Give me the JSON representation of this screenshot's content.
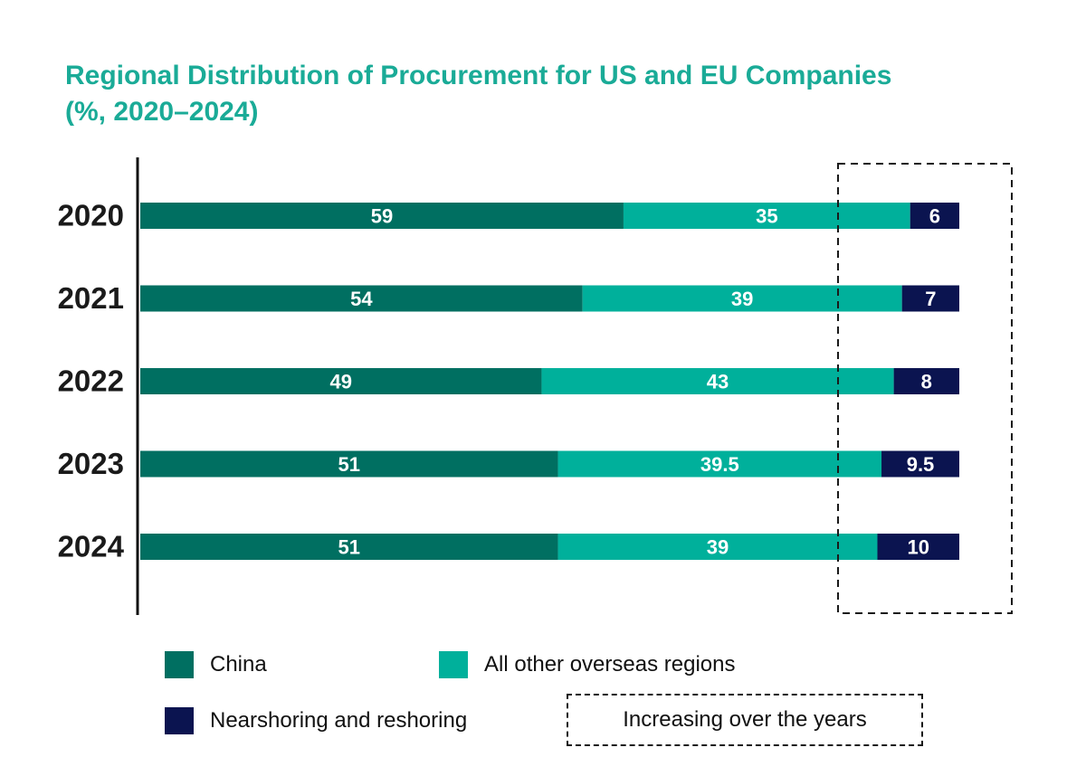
{
  "chart_data": {
    "type": "bar",
    "orientation": "horizontal",
    "stacked": true,
    "title": "Regional Distribution of Procurement for US and EU Companies",
    "subtitle": "(%, 2020–2024)",
    "categories": [
      "2020",
      "2021",
      "2022",
      "2023",
      "2024"
    ],
    "series": [
      {
        "name": "China",
        "color": "#006f61",
        "values": [
          59,
          54,
          49,
          51,
          51
        ]
      },
      {
        "name": "All other overseas regions",
        "color": "#00b09b",
        "values": [
          35,
          39,
          43,
          39.5,
          39
        ]
      },
      {
        "name": "Nearshoring and reshoring",
        "color": "#0b1450",
        "values": [
          6,
          7,
          8,
          9.5,
          10
        ]
      }
    ],
    "value_labels": [
      [
        "59",
        "54",
        "49",
        "51",
        "51"
      ],
      [
        "35",
        "39",
        "43",
        "39.5",
        "39"
      ],
      [
        "6",
        "7",
        "8",
        "9.5",
        "10"
      ]
    ],
    "xlim": [
      0,
      100
    ],
    "grid": false,
    "legend_position": "bottom",
    "annotation": "Increasing over the years"
  }
}
